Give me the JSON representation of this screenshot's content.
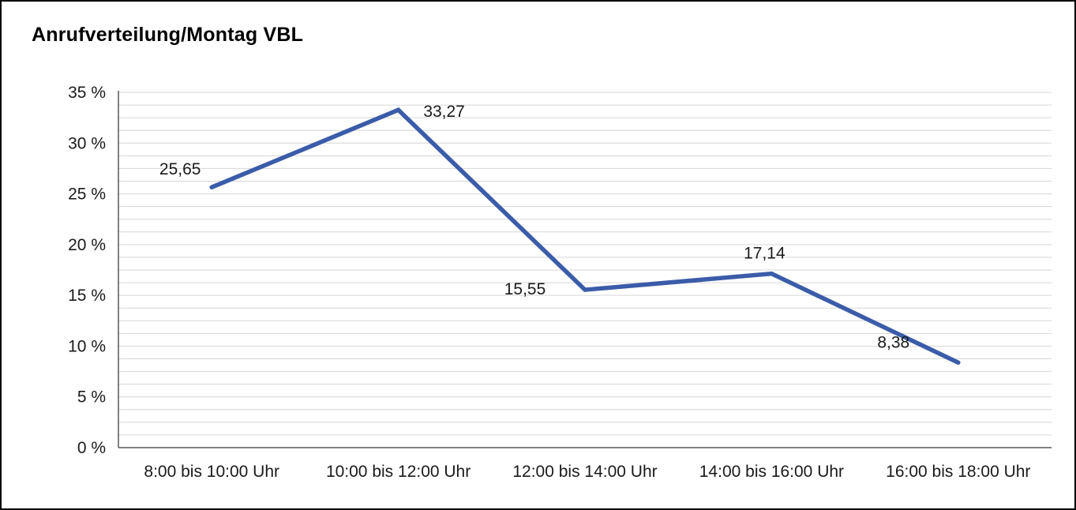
{
  "chart_data": {
    "type": "line",
    "title": "Anrufverteilung/Montag VBL",
    "categories": [
      "8:00 bis 10:00 Uhr",
      "10:00 bis 12:00 Uhr",
      "12:00 bis 14:00 Uhr",
      "14:00 bis 16:00 Uhr",
      "16:00 bis 18:00 Uhr"
    ],
    "values": [
      25.65,
      33.27,
      15.55,
      17.14,
      8.38
    ],
    "value_labels": [
      "25,65",
      "33,27",
      "15,55",
      "17,14",
      "8,38"
    ],
    "unit": "%",
    "ylim": [
      0,
      35
    ],
    "ytick_step": 5,
    "ytick_labels": [
      "0 %",
      "5 %",
      "10 %",
      "15 %",
      "20 %",
      "25 %",
      "30 %",
      "35 %"
    ],
    "xlabel": "",
    "ylabel": "",
    "grid": true,
    "legend": "none",
    "line_color": "#3b5ca9",
    "text_color": "#1a1a1a",
    "gridline_color": "#d6d6d6",
    "axis_color": "#595959"
  }
}
